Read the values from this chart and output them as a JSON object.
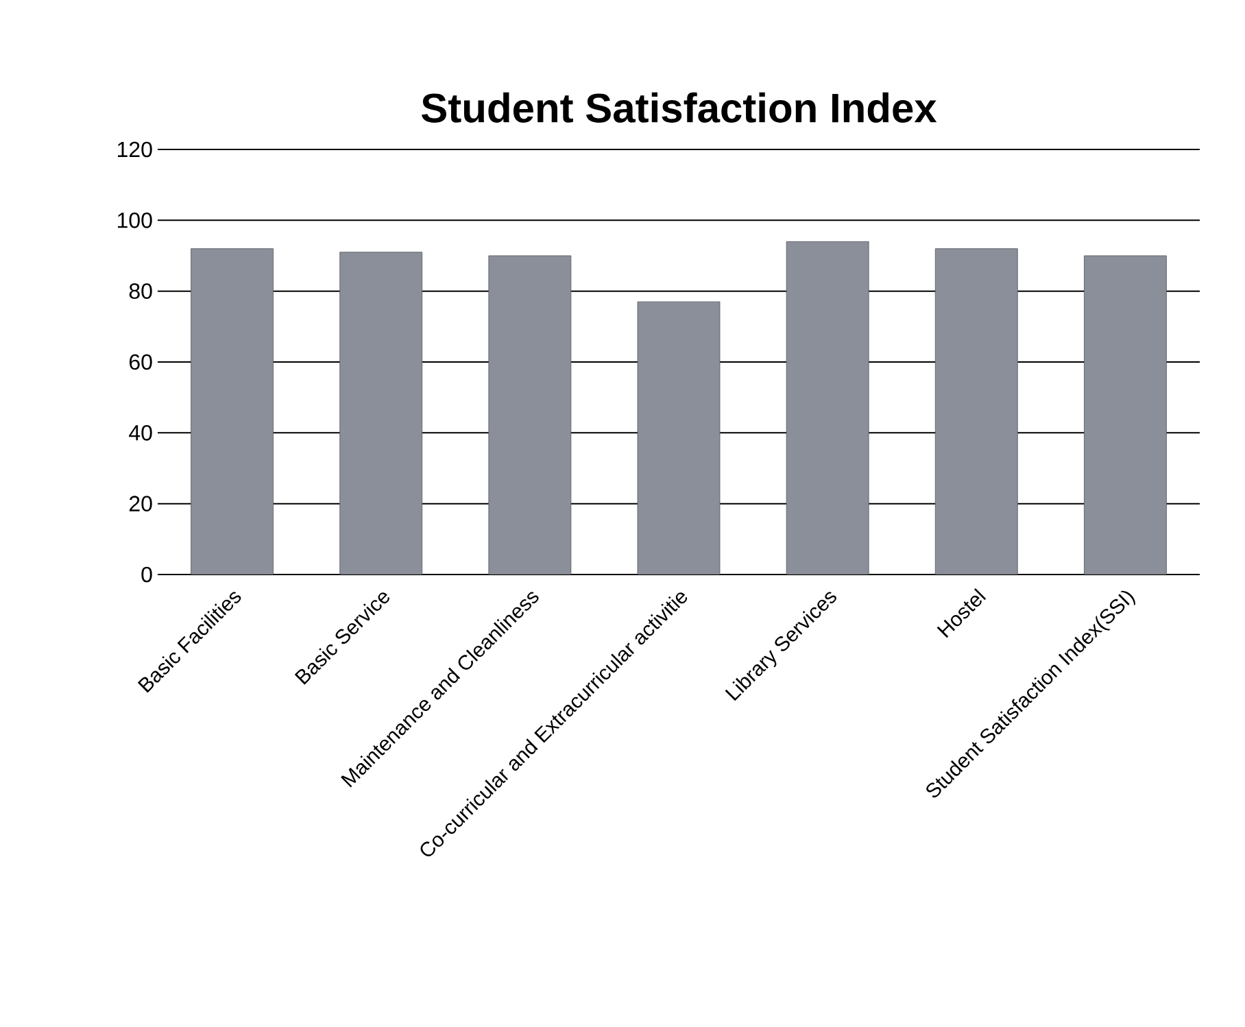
{
  "chart_data": {
    "type": "bar",
    "title": "Student Satisfaction Index",
    "categories": [
      "Basic Facilities",
      "Basic Service",
      "Maintenance and Cleanliness",
      "Co-curricular and Extracurricular activitie",
      "Library Services",
      "Hostel",
      "Student Satisfaction Index(SSI)"
    ],
    "values": [
      92,
      91,
      90,
      77,
      94,
      92,
      90
    ],
    "color": "#8a8f99",
    "ylim": [
      0,
      120
    ],
    "yticks": [
      0,
      20,
      40,
      60,
      80,
      100,
      120
    ],
    "grid": "y"
  }
}
